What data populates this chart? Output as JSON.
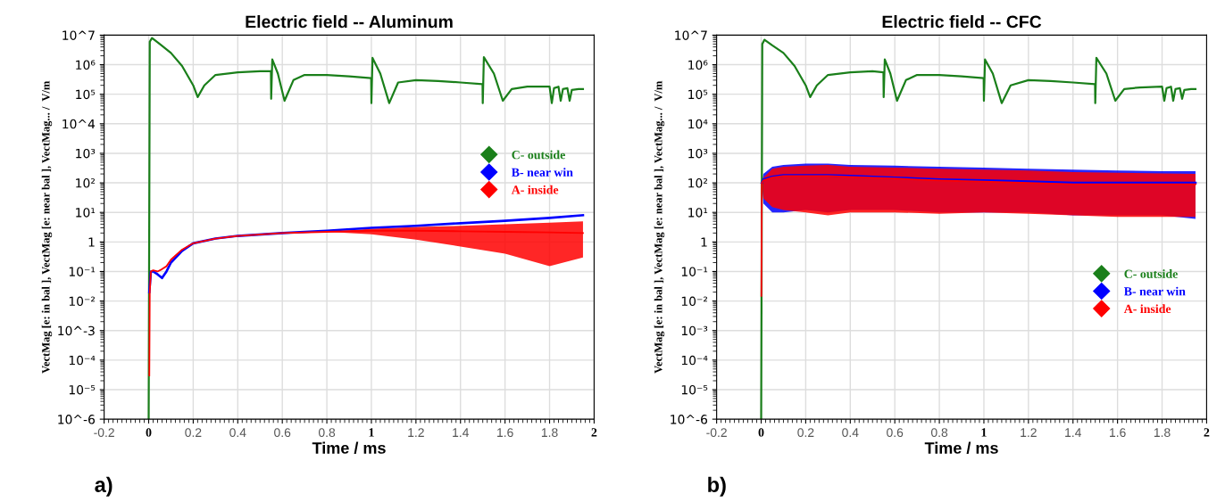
{
  "chart_data": [
    {
      "type": "line",
      "title": "Electric field -- Aluminum",
      "xlabel": "Time / ms",
      "ylabel": "VectMag [e: in bal ], VectMag [e: near bal ], VectMag... /  V/m",
      "annotations": [
        "a)"
      ],
      "log": "y",
      "grid": true,
      "legend": "center right",
      "xlim": [
        -0.2,
        2
      ],
      "xticks": [
        -0.2,
        0,
        0.2,
        0.4,
        0.6,
        0.8,
        1,
        1.2,
        1.4,
        1.6,
        1.8,
        2
      ],
      "ylim": [
        1e-06,
        10000000.0
      ],
      "yticks": [
        {
          "value": 10000000.0,
          "label": "10^7"
        },
        {
          "value": 1000000.0,
          "label": "10⁶"
        },
        {
          "value": 100000.0,
          "label": "10⁵"
        },
        {
          "value": 10000.0,
          "label": "10^4"
        },
        {
          "value": 1000.0,
          "label": "10³"
        },
        {
          "value": 100,
          "label": "10²"
        },
        {
          "value": 10,
          "label": "10¹"
        },
        1,
        {
          "value": 0.1,
          "label": "10⁻¹"
        },
        {
          "value": 0.01,
          "label": "10⁻²"
        },
        {
          "value": 0.001,
          "label": "10^-3"
        },
        {
          "value": 0.0001,
          "label": "10⁻⁴"
        },
        {
          "value": 1e-05,
          "label": "10⁻⁵"
        },
        {
          "value": 1e-06,
          "label": "10^-6"
        }
      ],
      "series": [
        {
          "name": "C- outside",
          "color": "#1a7f1a",
          "x": [
            0,
            0.005,
            0.015,
            0.05,
            0.1,
            0.15,
            0.2,
            0.22,
            0.25,
            0.3,
            0.4,
            0.5,
            0.549,
            0.55,
            0.555,
            0.58,
            0.61,
            0.65,
            0.7,
            0.8,
            0.9,
            0.999,
            1.0,
            1.005,
            1.04,
            1.08,
            1.12,
            1.2,
            1.3,
            1.4,
            1.499,
            1.5,
            1.505,
            1.55,
            1.59,
            1.63,
            1.7,
            1.8,
            1.81,
            1.82,
            1.84,
            1.85,
            1.86,
            1.88,
            1.89,
            1.9,
            1.93,
            1.95
          ],
          "values": [
            1e-06,
            6000000.0,
            8000000.0,
            5000000.0,
            2500000.0,
            900000.0,
            200000.0,
            80000.0,
            200000.0,
            450000.0,
            550000.0,
            600000.0,
            600000.0,
            70000.0,
            1500000.0,
            500000.0,
            60000.0,
            300000.0,
            450000.0,
            450000.0,
            400000.0,
            350000.0,
            50000.0,
            1700000.0,
            500000.0,
            50000.0,
            250000.0,
            300000.0,
            280000.0,
            250000.0,
            220000.0,
            50000.0,
            1800000.0,
            500000.0,
            60000.0,
            150000.0,
            180000.0,
            180000.0,
            50000.0,
            160000.0,
            180000.0,
            60000.0,
            150000.0,
            160000.0,
            60000.0,
            140000.0,
            150000.0,
            150000.0
          ]
        },
        {
          "name": "B- near win",
          "color": "#0000ff",
          "x": [
            0.003,
            0.01,
            0.02,
            0.04,
            0.06,
            0.08,
            0.1,
            0.15,
            0.2,
            0.3,
            0.4,
            0.6,
            0.8,
            1.0,
            1.2,
            1.4,
            1.6,
            1.8,
            1.95
          ],
          "values": [
            0.02,
            0.1,
            0.1,
            0.08,
            0.06,
            0.1,
            0.2,
            0.5,
            0.9,
            1.3,
            1.6,
            2,
            2.4,
            3,
            3.5,
            4.3,
            5.2,
            6.5,
            8
          ]
        },
        {
          "name": "A- inside",
          "color": "#ff0000",
          "x": [
            0.003,
            0.005,
            0.01,
            0.02,
            0.04,
            0.06,
            0.08,
            0.1,
            0.15,
            0.2,
            0.3,
            0.4,
            0.6,
            0.8,
            1.0,
            1.2,
            1.4,
            1.6,
            1.8,
            1.95
          ],
          "values": [
            3e-05,
            0.02,
            0.1,
            0.11,
            0.1,
            0.12,
            0.15,
            0.25,
            0.55,
            0.9,
            1.3,
            1.6,
            2,
            2.2,
            2.4,
            2.4,
            2.3,
            2.2,
            2.1,
            2
          ],
          "lower": [
            3e-05,
            0.02,
            0.1,
            0.11,
            0.1,
            0.12,
            0.15,
            0.25,
            0.55,
            0.9,
            1.3,
            1.6,
            2,
            2.2,
            1.8,
            1.2,
            0.7,
            0.4,
            0.15,
            0.3
          ],
          "upper": [
            3e-05,
            0.02,
            0.1,
            0.11,
            0.1,
            0.12,
            0.15,
            0.25,
            0.55,
            0.9,
            1.3,
            1.6,
            2,
            2.2,
            2.8,
            3.2,
            3.5,
            4,
            4.5,
            5
          ]
        }
      ]
    },
    {
      "type": "line",
      "title": "Electric field -- CFC",
      "xlabel": "Time / ms",
      "ylabel": "VectMag [e: in bal ], VectMag [e: near bal ], VectMag... /  V/m",
      "annotations": [
        "b)"
      ],
      "log": "y",
      "grid": true,
      "legend": "lower right",
      "xlim": [
        -0.2,
        2
      ],
      "xticks": [
        -0.2,
        0,
        0.2,
        0.4,
        0.6,
        0.8,
        1,
        1.2,
        1.4,
        1.6,
        1.8,
        2
      ],
      "ylim": [
        1e-06,
        10000000.0
      ],
      "yticks": [
        {
          "value": 10000000.0,
          "label": "10^7"
        },
        {
          "value": 1000000.0,
          "label": "10⁶"
        },
        {
          "value": 100000.0,
          "label": "10⁵"
        },
        {
          "value": 10000.0,
          "label": "10⁴"
        },
        {
          "value": 1000.0,
          "label": "10³"
        },
        {
          "value": 100,
          "label": "10²"
        },
        {
          "value": 10,
          "label": "10¹"
        },
        1,
        {
          "value": 0.1,
          "label": "10⁻¹"
        },
        {
          "value": 0.01,
          "label": "10⁻²"
        },
        {
          "value": 0.001,
          "label": "10⁻³"
        },
        {
          "value": 0.0001,
          "label": "10⁻⁴"
        },
        {
          "value": 1e-05,
          "label": "10⁻⁵"
        },
        {
          "value": 1e-06,
          "label": "10^-6"
        }
      ],
      "series": [
        {
          "name": "C- outside",
          "color": "#1a7f1a",
          "x": [
            0,
            0.005,
            0.015,
            0.05,
            0.1,
            0.15,
            0.2,
            0.22,
            0.25,
            0.3,
            0.4,
            0.5,
            0.549,
            0.55,
            0.555,
            0.58,
            0.61,
            0.65,
            0.7,
            0.8,
            0.9,
            0.999,
            1.0,
            1.005,
            1.04,
            1.08,
            1.12,
            1.2,
            1.3,
            1.4,
            1.499,
            1.5,
            1.505,
            1.55,
            1.59,
            1.63,
            1.7,
            1.8,
            1.81,
            1.82,
            1.84,
            1.85,
            1.86,
            1.88,
            1.89,
            1.9,
            1.93,
            1.95
          ],
          "values": [
            1e-06,
            5000000.0,
            7000000.0,
            4500000.0,
            2500000.0,
            900000.0,
            200000.0,
            80000.0,
            200000.0,
            450000.0,
            550000.0,
            600000.0,
            550000.0,
            80000.0,
            1500000.0,
            500000.0,
            60000.0,
            300000.0,
            450000.0,
            450000.0,
            400000.0,
            350000.0,
            60000.0,
            1500000.0,
            500000.0,
            50000.0,
            200000.0,
            300000.0,
            280000.0,
            250000.0,
            220000.0,
            50000.0,
            1700000.0,
            500000.0,
            60000.0,
            150000.0,
            170000.0,
            180000.0,
            60000.0,
            160000.0,
            180000.0,
            60000.0,
            150000.0,
            160000.0,
            70000.0,
            140000.0,
            150000.0,
            150000.0
          ]
        },
        {
          "name": "B- near win",
          "color": "#0000ff",
          "x": [
            0.003,
            0.01,
            0.05,
            0.1,
            0.2,
            0.3,
            0.4,
            0.6,
            0.8,
            1.0,
            1.2,
            1.4,
            1.6,
            1.8,
            1.95
          ],
          "values": [
            100,
            130,
            160,
            180,
            180,
            180,
            170,
            150,
            130,
            120,
            110,
            100,
            100,
            100,
            100
          ],
          "lower": [
            100,
            20,
            10,
            10,
            12,
            10,
            12,
            12,
            10,
            10,
            10,
            8,
            8,
            8,
            6
          ],
          "upper": [
            100,
            200,
            350,
            400,
            450,
            450,
            400,
            380,
            350,
            330,
            300,
            280,
            260,
            250,
            250
          ]
        },
        {
          "name": "A- inside",
          "color": "#ff0000",
          "x": [
            0.001,
            0.003,
            0.01,
            0.05,
            0.1,
            0.2,
            0.3,
            0.4,
            0.6,
            0.8,
            1.0,
            1.2,
            1.4,
            1.6,
            1.8,
            1.95
          ],
          "values": [
            0.015,
            100,
            120,
            150,
            170,
            170,
            170,
            160,
            140,
            120,
            110,
            100,
            90,
            90,
            90,
            90
          ],
          "lower": [
            0.015,
            100,
            30,
            15,
            12,
            10,
            8,
            10,
            10,
            9,
            10,
            9,
            8,
            7,
            7,
            7
          ],
          "upper": [
            0.015,
            100,
            150,
            300,
            350,
            380,
            400,
            350,
            330,
            300,
            280,
            260,
            230,
            220,
            210,
            200
          ]
        }
      ]
    }
  ]
}
